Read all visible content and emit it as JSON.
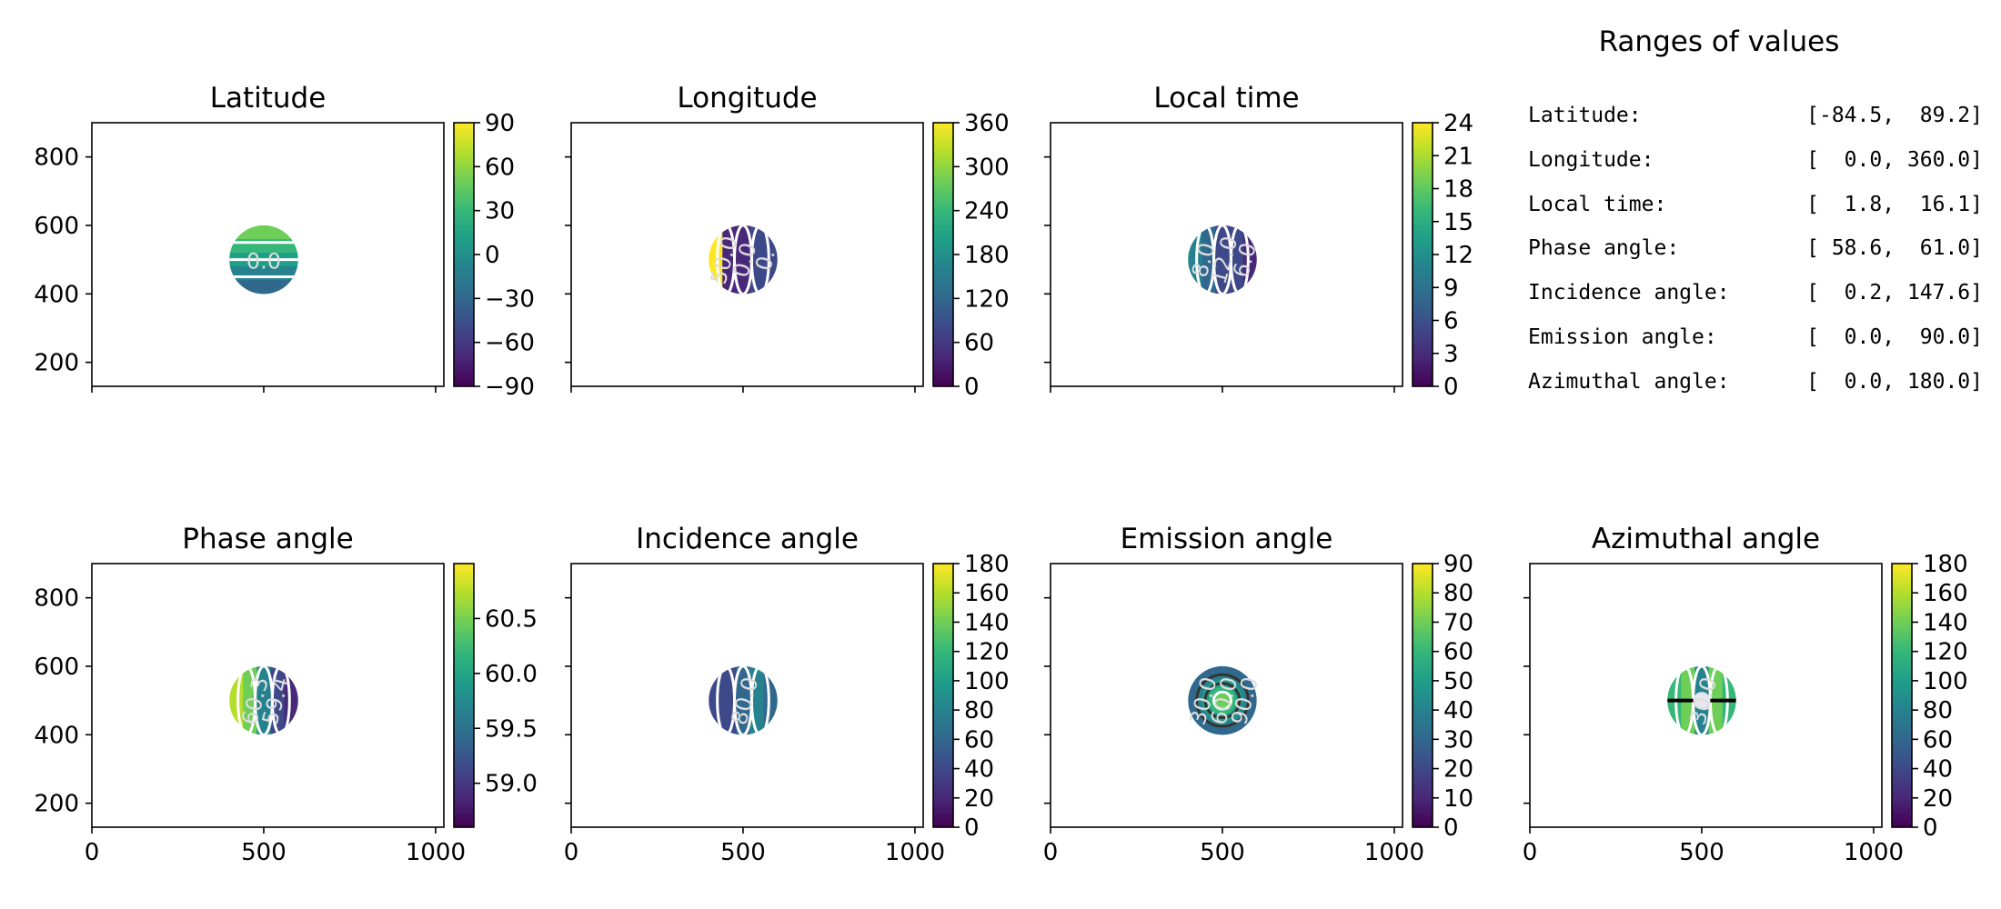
{
  "chart_data": [
    {
      "type": "heatmap",
      "title": "Latitude",
      "xlim": [
        0,
        1024
      ],
      "ylim": [
        130,
        900
      ],
      "yticks": [
        "200",
        "400",
        "600",
        "800"
      ],
      "xticks": [],
      "show_yticklabels": true,
      "show_xticklabels": false,
      "colorbar": {
        "ticks": [
          "−90",
          "−60",
          "−30",
          "0",
          "30",
          "60",
          "90"
        ],
        "vmin": -90,
        "vmax": 90
      },
      "contour_labels": [
        "0.0"
      ]
    },
    {
      "type": "heatmap",
      "title": "Longitude",
      "xlim": [
        0,
        1024
      ],
      "ylim": [
        130,
        900
      ],
      "yticks": [],
      "xticks": [],
      "show_yticklabels": false,
      "show_xticklabels": false,
      "colorbar": {
        "ticks": [
          "0",
          "60",
          "120",
          "180",
          "240",
          "300",
          "360"
        ],
        "vmin": 0,
        "vmax": 360
      },
      "contour_labels": [
        "50.0",
        "0.0",
        "0."
      ]
    },
    {
      "type": "heatmap",
      "title": "Local time",
      "xlim": [
        0,
        1024
      ],
      "ylim": [
        130,
        900
      ],
      "yticks": [],
      "xticks": [],
      "show_yticklabels": false,
      "show_xticklabels": false,
      "colorbar": {
        "ticks": [
          "0",
          "3",
          "6",
          "9",
          "12",
          "15",
          "18",
          "21",
          "24"
        ],
        "vmin": 0,
        "vmax": 24
      },
      "contour_labels": [
        "8.0",
        "12.0",
        "6.0"
      ]
    },
    {
      "type": "heatmap",
      "title": "Phase angle",
      "xlim": [
        0,
        1024
      ],
      "ylim": [
        130,
        900
      ],
      "yticks": [
        "200",
        "400",
        "600",
        "800"
      ],
      "xticks": [
        "0",
        "500",
        "1000"
      ],
      "show_yticklabels": true,
      "show_xticklabels": true,
      "colorbar": {
        "ticks": [
          "59.0",
          "59.5",
          "60.0",
          "60.5"
        ],
        "vmin": 58.6,
        "vmax": 61.0
      },
      "contour_labels": [
        "60.3",
        "59.4"
      ]
    },
    {
      "type": "heatmap",
      "title": "Incidence angle",
      "xlim": [
        0,
        1024
      ],
      "ylim": [
        130,
        900
      ],
      "yticks": [],
      "xticks": [
        "0",
        "500",
        "1000"
      ],
      "show_yticklabels": false,
      "show_xticklabels": true,
      "colorbar": {
        "ticks": [
          "0",
          "20",
          "40",
          "60",
          "80",
          "100",
          "120",
          "140",
          "160",
          "180"
        ],
        "vmin": 0,
        "vmax": 180
      },
      "contour_labels": [
        "80.0"
      ]
    },
    {
      "type": "heatmap",
      "title": "Emission angle",
      "xlim": [
        0,
        1024
      ],
      "ylim": [
        130,
        900
      ],
      "yticks": [],
      "xticks": [
        "0",
        "500",
        "1000"
      ],
      "show_yticklabels": false,
      "show_xticklabels": true,
      "colorbar": {
        "ticks": [
          "0",
          "10",
          "20",
          "30",
          "40",
          "50",
          "60",
          "70",
          "80",
          "90"
        ],
        "vmin": 0,
        "vmax": 90
      },
      "contour_labels": [
        "30.0",
        "60.0",
        "90.0"
      ]
    },
    {
      "type": "heatmap",
      "title": "Azimuthal angle",
      "xlim": [
        0,
        1024
      ],
      "ylim": [
        130,
        900
      ],
      "yticks": [],
      "xticks": [
        "0",
        "500",
        "1000"
      ],
      "show_yticklabels": false,
      "show_xticklabels": true,
      "colorbar": {
        "ticks": [
          "0",
          "20",
          "40",
          "60",
          "80",
          "100",
          "120",
          "140",
          "160",
          "180"
        ],
        "vmin": 0,
        "vmax": 180
      },
      "contour_labels": [
        "30.0"
      ]
    }
  ],
  "ranges": {
    "title": "Ranges of values",
    "rows": [
      {
        "label": "Latitude:",
        "value": "[-84.5,  89.2]"
      },
      {
        "label": "Longitude:",
        "value": "[  0.0, 360.0]"
      },
      {
        "label": "Local time:",
        "value": "[  1.8,  16.1]"
      },
      {
        "label": "Phase angle:",
        "value": "[ 58.6,  61.0]"
      },
      {
        "label": "Incidence angle:",
        "value": "[  0.2, 147.6]"
      },
      {
        "label": "Emission angle:",
        "value": "[  0.0,  90.0]"
      },
      {
        "label": "Azimuthal angle:",
        "value": "[  0.0, 180.0]"
      }
    ]
  },
  "colormap": [
    "#440154",
    "#482878",
    "#3e4989",
    "#31688e",
    "#26828e",
    "#1f9e89",
    "#35b779",
    "#6ece58",
    "#b5de2b",
    "#fde725"
  ]
}
